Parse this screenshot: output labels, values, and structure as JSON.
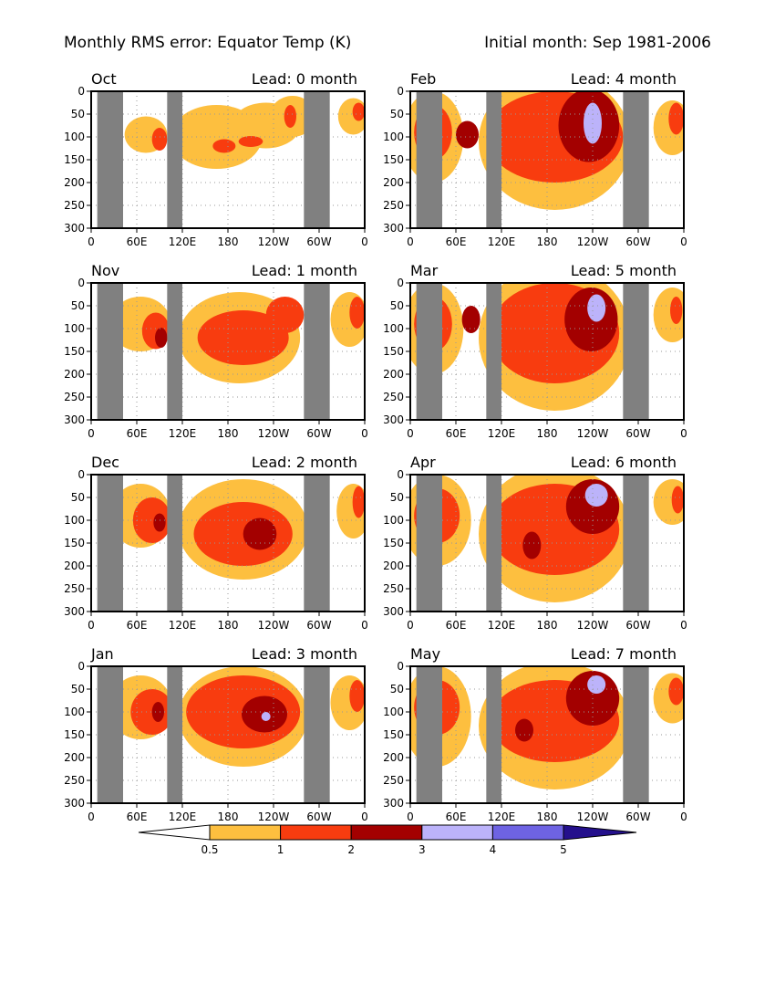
{
  "header": {
    "left": "Monthly RMS error: Equator Temp (K)",
    "right": "Initial month: Sep 1981-2006"
  },
  "chart_data": {
    "type": "heatmap",
    "title": "Monthly RMS error: Equator Temp (K)",
    "subtitle": "Initial month: Sep 1981-2006",
    "x_ticks": [
      "0",
      "60E",
      "120E",
      "180",
      "120W",
      "60W",
      "0"
    ],
    "x_tick_values": [
      0,
      60,
      120,
      180,
      240,
      300,
      360
    ],
    "y_ticks": [
      "0",
      "50",
      "100",
      "150",
      "200",
      "250",
      "300"
    ],
    "y_tick_values": [
      0,
      50,
      100,
      150,
      200,
      250,
      300
    ],
    "xlim": [
      0,
      360
    ],
    "ylim": [
      300,
      0
    ],
    "land_mask_lon_ranges": [
      [
        8,
        42
      ],
      [
        100,
        120
      ],
      [
        280,
        314
      ]
    ],
    "levels": [
      0.5,
      1,
      2,
      3,
      4,
      5
    ],
    "level_labels": [
      "0.5",
      "1",
      "2",
      "3",
      "4",
      "5"
    ],
    "colors": [
      "#ffffff",
      "#fdbf3f",
      "#f83c0f",
      "#a30000",
      "#bcb3fa",
      "#6e63e3",
      "#24108c"
    ],
    "land_color": "#808080",
    "panels": [
      {
        "month": "Oct",
        "lead": "Lead: 0 month",
        "blobs": [
          {
            "level": 1,
            "lon": 72,
            "depth": 95,
            "rl": 28,
            "rd": 40
          },
          {
            "level": 1,
            "lon": 165,
            "depth": 100,
            "rl": 60,
            "rd": 70
          },
          {
            "level": 1,
            "lon": 230,
            "depth": 75,
            "rl": 45,
            "rd": 50
          },
          {
            "level": 1,
            "lon": 265,
            "depth": 55,
            "rl": 30,
            "rd": 45
          },
          {
            "level": 1,
            "lon": 345,
            "depth": 55,
            "rl": 20,
            "rd": 40
          },
          {
            "level": 2,
            "lon": 90,
            "depth": 105,
            "rl": 10,
            "rd": 25
          },
          {
            "level": 2,
            "lon": 175,
            "depth": 120,
            "rl": 15,
            "rd": 15
          },
          {
            "level": 2,
            "lon": 210,
            "depth": 110,
            "rl": 16,
            "rd": 12
          },
          {
            "level": 2,
            "lon": 262,
            "depth": 55,
            "rl": 8,
            "rd": 25
          },
          {
            "level": 2,
            "lon": 352,
            "depth": 45,
            "rl": 8,
            "rd": 20
          }
        ]
      },
      {
        "month": "Nov",
        "lead": "Lead: 1 month",
        "blobs": [
          {
            "level": 1,
            "lon": 65,
            "depth": 90,
            "rl": 40,
            "rd": 60
          },
          {
            "level": 1,
            "lon": 195,
            "depth": 120,
            "rl": 80,
            "rd": 100
          },
          {
            "level": 1,
            "lon": 340,
            "depth": 80,
            "rl": 25,
            "rd": 60
          },
          {
            "level": 2,
            "lon": 85,
            "depth": 105,
            "rl": 18,
            "rd": 40
          },
          {
            "level": 2,
            "lon": 200,
            "depth": 120,
            "rl": 60,
            "rd": 60
          },
          {
            "level": 2,
            "lon": 255,
            "depth": 70,
            "rl": 25,
            "rd": 40
          },
          {
            "level": 2,
            "lon": 350,
            "depth": 65,
            "rl": 10,
            "rd": 35
          },
          {
            "level": 3,
            "lon": 92,
            "depth": 120,
            "rl": 8,
            "rd": 22
          }
        ]
      },
      {
        "month": "Dec",
        "lead": "Lead: 2 month",
        "blobs": [
          {
            "level": 1,
            "lon": 65,
            "depth": 90,
            "rl": 40,
            "rd": 70
          },
          {
            "level": 1,
            "lon": 200,
            "depth": 120,
            "rl": 85,
            "rd": 110
          },
          {
            "level": 1,
            "lon": 345,
            "depth": 80,
            "rl": 22,
            "rd": 60
          },
          {
            "level": 2,
            "lon": 80,
            "depth": 100,
            "rl": 25,
            "rd": 50
          },
          {
            "level": 2,
            "lon": 200,
            "depth": 130,
            "rl": 65,
            "rd": 70
          },
          {
            "level": 2,
            "lon": 352,
            "depth": 60,
            "rl": 8,
            "rd": 35
          },
          {
            "level": 3,
            "lon": 90,
            "depth": 105,
            "rl": 8,
            "rd": 20
          },
          {
            "level": 3,
            "lon": 222,
            "depth": 130,
            "rl": 22,
            "rd": 35
          }
        ]
      },
      {
        "month": "Jan",
        "lead": "Lead: 3 month",
        "blobs": [
          {
            "level": 1,
            "lon": 65,
            "depth": 90,
            "rl": 42,
            "rd": 70
          },
          {
            "level": 1,
            "lon": 200,
            "depth": 110,
            "rl": 85,
            "rd": 110
          },
          {
            "level": 1,
            "lon": 340,
            "depth": 80,
            "rl": 25,
            "rd": 60
          },
          {
            "level": 2,
            "lon": 80,
            "depth": 100,
            "rl": 28,
            "rd": 50
          },
          {
            "level": 2,
            "lon": 200,
            "depth": 100,
            "rl": 75,
            "rd": 80
          },
          {
            "level": 2,
            "lon": 350,
            "depth": 65,
            "rl": 10,
            "rd": 35
          },
          {
            "level": 3,
            "lon": 88,
            "depth": 100,
            "rl": 8,
            "rd": 22
          },
          {
            "level": 3,
            "lon": 228,
            "depth": 105,
            "rl": 30,
            "rd": 40
          },
          {
            "level": 4,
            "lon": 230,
            "depth": 110,
            "rl": 6,
            "rd": 10
          }
        ]
      },
      {
        "month": "Feb",
        "lead": "Lead: 4 month",
        "blobs": [
          {
            "level": 1,
            "lon": 30,
            "depth": 100,
            "rl": 40,
            "rd": 100
          },
          {
            "level": 1,
            "lon": 190,
            "depth": 110,
            "rl": 100,
            "rd": 150
          },
          {
            "level": 1,
            "lon": 345,
            "depth": 80,
            "rl": 25,
            "rd": 60
          },
          {
            "level": 2,
            "lon": 30,
            "depth": 90,
            "rl": 25,
            "rd": 60
          },
          {
            "level": 2,
            "lon": 190,
            "depth": 100,
            "rl": 90,
            "rd": 100
          },
          {
            "level": 2,
            "lon": 350,
            "depth": 60,
            "rl": 10,
            "rd": 35
          },
          {
            "level": 3,
            "lon": 75,
            "depth": 95,
            "rl": 15,
            "rd": 30
          },
          {
            "level": 3,
            "lon": 235,
            "depth": 75,
            "rl": 40,
            "rd": 80
          },
          {
            "level": 4,
            "lon": 240,
            "depth": 70,
            "rl": 12,
            "rd": 45
          }
        ]
      },
      {
        "month": "Mar",
        "lead": "Lead: 5 month",
        "blobs": [
          {
            "level": 1,
            "lon": 30,
            "depth": 100,
            "rl": 40,
            "rd": 100
          },
          {
            "level": 1,
            "lon": 190,
            "depth": 120,
            "rl": 100,
            "rd": 160
          },
          {
            "level": 1,
            "lon": 345,
            "depth": 70,
            "rl": 25,
            "rd": 60
          },
          {
            "level": 2,
            "lon": 30,
            "depth": 90,
            "rl": 25,
            "rd": 60
          },
          {
            "level": 2,
            "lon": 190,
            "depth": 110,
            "rl": 85,
            "rd": 110
          },
          {
            "level": 2,
            "lon": 350,
            "depth": 60,
            "rl": 8,
            "rd": 30
          },
          {
            "level": 3,
            "lon": 80,
            "depth": 80,
            "rl": 12,
            "rd": 30
          },
          {
            "level": 3,
            "lon": 238,
            "depth": 80,
            "rl": 35,
            "rd": 70
          },
          {
            "level": 4,
            "lon": 245,
            "depth": 55,
            "rl": 12,
            "rd": 30
          }
        ]
      },
      {
        "month": "Apr",
        "lead": "Lead: 6 month",
        "blobs": [
          {
            "level": 1,
            "lon": 35,
            "depth": 100,
            "rl": 45,
            "rd": 100
          },
          {
            "level": 1,
            "lon": 190,
            "depth": 130,
            "rl": 100,
            "rd": 150
          },
          {
            "level": 1,
            "lon": 345,
            "depth": 60,
            "rl": 25,
            "rd": 50
          },
          {
            "level": 2,
            "lon": 35,
            "depth": 90,
            "rl": 30,
            "rd": 60
          },
          {
            "level": 2,
            "lon": 190,
            "depth": 120,
            "rl": 85,
            "rd": 100
          },
          {
            "level": 2,
            "lon": 352,
            "depth": 55,
            "rl": 8,
            "rd": 30
          },
          {
            "level": 3,
            "lon": 160,
            "depth": 155,
            "rl": 12,
            "rd": 30
          },
          {
            "level": 3,
            "lon": 240,
            "depth": 70,
            "rl": 35,
            "rd": 60
          },
          {
            "level": 4,
            "lon": 245,
            "depth": 45,
            "rl": 15,
            "rd": 25
          }
        ]
      },
      {
        "month": "May",
        "lead": "Lead: 7 month",
        "blobs": [
          {
            "level": 1,
            "lon": 35,
            "depth": 110,
            "rl": 45,
            "rd": 110
          },
          {
            "level": 1,
            "lon": 190,
            "depth": 130,
            "rl": 100,
            "rd": 140
          },
          {
            "level": 1,
            "lon": 345,
            "depth": 70,
            "rl": 25,
            "rd": 55
          },
          {
            "level": 2,
            "lon": 35,
            "depth": 90,
            "rl": 30,
            "rd": 60
          },
          {
            "level": 2,
            "lon": 190,
            "depth": 120,
            "rl": 85,
            "rd": 90
          },
          {
            "level": 2,
            "lon": 350,
            "depth": 55,
            "rl": 10,
            "rd": 30
          },
          {
            "level": 3,
            "lon": 150,
            "depth": 140,
            "rl": 12,
            "rd": 25
          },
          {
            "level": 3,
            "lon": 240,
            "depth": 70,
            "rl": 35,
            "rd": 60
          },
          {
            "level": 4,
            "lon": 245,
            "depth": 40,
            "rl": 12,
            "rd": 20
          }
        ]
      }
    ]
  }
}
